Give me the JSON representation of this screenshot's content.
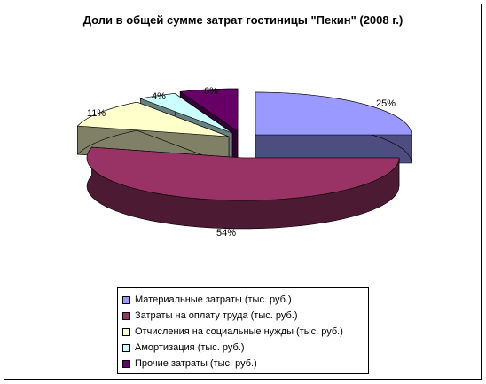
{
  "chart_data": {
    "type": "pie",
    "title": "Доли в общей сумме затрат гостиницы \"Пекин\" (2008 г.)",
    "legend_position": "bottom",
    "exploded": true,
    "slices": [
      {
        "name": "Материальные затраты (тыс. руб.)",
        "value": 25,
        "label": "25%",
        "color": "#9999ff",
        "side": "#4d4d80"
      },
      {
        "name": "Затраты на оплату труда (тыс. руб.)",
        "value": 54,
        "label": "54%",
        "color": "#993366",
        "side": "#4d1a33"
      },
      {
        "name": "Отчисления на социальные нужды (тыс. руб.)",
        "value": 11,
        "label": "11%",
        "color": "#ffffcc",
        "side": "#808066"
      },
      {
        "name": "Амортизация (тыс. руб.)",
        "value": 4,
        "label": "4%",
        "color": "#ccffff",
        "side": "#668080"
      },
      {
        "name": "Прочие затраты (тыс. руб.)",
        "value": 6,
        "label": "6%",
        "color": "#660066",
        "side": "#330033"
      }
    ]
  }
}
